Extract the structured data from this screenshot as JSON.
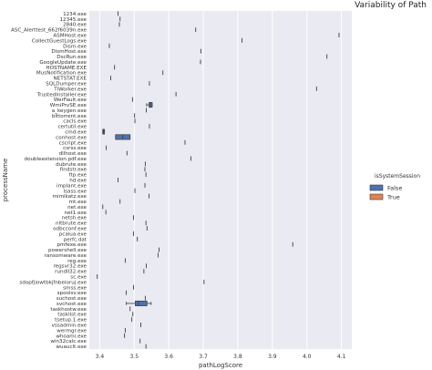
{
  "chart_data": {
    "type": "boxplot",
    "title": "Variability of Path",
    "xlabel": "pathLogScore",
    "ylabel": "processName",
    "xlim": [
      3.37,
      4.13
    ],
    "xticks": [
      3.4,
      3.5,
      3.6,
      3.7,
      3.8,
      3.9,
      4.0,
      4.1
    ],
    "grid": true,
    "legend": {
      "title": "isSystemSession",
      "placement": "right",
      "entries": [
        {
          "label": "False",
          "color": "#4c72b0"
        },
        {
          "label": "True",
          "color": "#dd8452"
        }
      ]
    },
    "categories": [
      "1234.exe",
      "12345.exe",
      "2840.exe",
      "ASC_Alerttest_662f6039n.exe",
      "ASMHost.exe",
      "CollectGuestLogs.exe",
      "Dism.exe",
      "DismHost.exe",
      "DscRun.exe",
      "GoogleUpdate.exe",
      "HOSTNAME.EXE",
      "MusNotification.exe",
      "NETSTAT.EXE",
      "SQLDumper.exe",
      "TiWorker.exe",
      "TrustedInstaller.exe",
      "WerFault.exe",
      "WmiPrvSE.exe",
      "a_keygen.exe",
      "bittorrent.exe",
      "cacls.exe",
      "certutil.exe",
      "cmd.exe",
      "conhost.exe",
      "cscript.exe",
      "csrss.exe",
      "dllhost.exe",
      "doubleextension.pdf.exe",
      "dubrute.exe",
      "findstr.exe",
      "ftp.exe",
      "hd.exe",
      "implant.exe",
      "lsass.exe",
      "mimikatz.exe",
      "mt.exe",
      "net.exe",
      "net1.exe",
      "netsh.exe",
      "nltbrute.exe",
      "odbcconf.exe",
      "pcalua.exe",
      "perfc.dat",
      "pmfexe.exe",
      "powershell.exe",
      "ransomware.exe",
      "reg.exe",
      "regsvr32.exe",
      "rundll32.exe",
      "sc.exe",
      "sdopfjiowtbkjfnbeioruj.exe",
      "smss.exe",
      "spoolsv.exe",
      "suchost.exe",
      "svchost.exe",
      "taskhostw.exe",
      "tasklist.exe",
      "tsetup.1.exe",
      "vssadmin.exe",
      "wermgr.exe",
      "whoami.exe",
      "win32calc.exe",
      "wuauclt.exe"
    ],
    "series": [
      {
        "name": "False",
        "color": "#4c72b0",
        "values": [
          3.453,
          3.459,
          3.457,
          3.678,
          4.093,
          3.812,
          3.428,
          3.693,
          4.058,
          3.692,
          3.443,
          3.583,
          3.432,
          3.544,
          4.028,
          3.621,
          3.495,
          3.548,
          3.535,
          3.501,
          3.502,
          3.544,
          3.412,
          3.467,
          3.647,
          3.419,
          3.479,
          3.664,
          3.532,
          3.531,
          3.534,
          3.453,
          3.531,
          3.502,
          3.543,
          3.459,
          3.409,
          3.418,
          3.498,
          3.534,
          3.537,
          3.498,
          3.509,
          3.959,
          3.572,
          3.569,
          3.474,
          3.535,
          3.528,
          3.393,
          3.702,
          3.498,
          3.477,
          3.532,
          3.512,
          3.488,
          3.496,
          3.493,
          3.519,
          3.474,
          3.472,
          3.517,
          3.534
        ],
        "boxes": [
          {
            "category": "WmiPrvSE.exe",
            "q1": 3.543,
            "median": 3.547,
            "q3": 3.552,
            "whisker_low": 3.536,
            "whisker_high": 3.552
          },
          {
            "category": "cmd.exe",
            "q1": 3.409,
            "median": 3.411,
            "q3": 3.414,
            "whisker_low": 3.409,
            "whisker_high": 3.414
          },
          {
            "category": "conhost.exe",
            "q1": 3.446,
            "median": 3.467,
            "q3": 3.488,
            "whisker_low": 3.446,
            "whisker_high": 3.488
          },
          {
            "category": "svchost.exe",
            "q1": 3.503,
            "median": 3.512,
            "q3": 3.537,
            "whisker_low": 3.477,
            "whisker_high": 3.549
          }
        ]
      },
      {
        "name": "True",
        "color": "#dd8452",
        "values": []
      }
    ]
  }
}
